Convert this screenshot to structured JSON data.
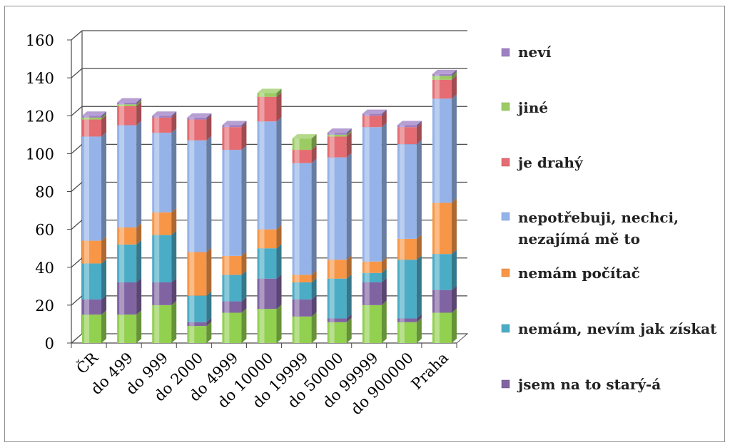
{
  "chart_data": {
    "type": "bar",
    "stacked": true,
    "three_d": true,
    "categories": [
      "ČR",
      "do 499",
      "do 999",
      "do 2000",
      "do 4999",
      "do 10000",
      "do 19999",
      "do 50000",
      "do 99999",
      "do 900000",
      "Praha"
    ],
    "series": [
      {
        "name": "jsem na to starý-á",
        "color": "#8064a2",
        "values": [
          8,
          17,
          12,
          2,
          6,
          16,
          9,
          2,
          12,
          2,
          12
        ]
      },
      {
        "name": "nemám, nevím jak získat",
        "color": "#4bacc6",
        "values": [
          19,
          20,
          25,
          14,
          14,
          16,
          9,
          21,
          5,
          31,
          19
        ]
      },
      {
        "name": "nemám počítač",
        "color": "#f79646",
        "values": [
          12,
          9,
          12,
          23,
          10,
          10,
          4,
          10,
          6,
          11,
          27
        ]
      },
      {
        "name": "nepotřebuji, nechci, nezajímá mě to",
        "color": "#95b3e8",
        "values": [
          55,
          54,
          42,
          59,
          56,
          57,
          59,
          54,
          71,
          50,
          55
        ]
      },
      {
        "name": "je drahý",
        "color": "#e46c72",
        "values": [
          9,
          10,
          8,
          11,
          12,
          13,
          7,
          11,
          6,
          9,
          10
        ]
      },
      {
        "name": "jiné",
        "color": "#9bcc63",
        "values": [
          1,
          1,
          0,
          0,
          0,
          2,
          6,
          1,
          0,
          0,
          2
        ]
      },
      {
        "name": "neví",
        "color": "#9d7fc4",
        "values": [
          1,
          1,
          1,
          1,
          1,
          0,
          0,
          1,
          1,
          1,
          1
        ]
      }
    ],
    "base_series": {
      "color": "#92d050",
      "values": [
        15,
        15,
        20,
        9,
        16,
        18,
        14,
        11,
        20,
        11,
        16
      ]
    },
    "ylim": [
      0,
      160
    ],
    "yticks": [
      0,
      20,
      40,
      60,
      80,
      100,
      120,
      140,
      160
    ],
    "grid": true,
    "legend": "right"
  },
  "legend": {
    "items": [
      {
        "label": "neví",
        "color": "#9d7fc4"
      },
      {
        "label": "jiné",
        "color": "#9bcc63"
      },
      {
        "label": "je drahý",
        "color": "#e46c72"
      },
      {
        "label_line1": "nepotřebuji, nechci,",
        "label_line2": "nezajímá mě to",
        "color": "#95b3e8"
      },
      {
        "label": "nemám počítač",
        "color": "#f79646"
      },
      {
        "label": "nemám, nevím jak získat",
        "color": "#4bacc6"
      },
      {
        "label": "jsem na to starý-á",
        "color": "#8064a2"
      }
    ]
  }
}
